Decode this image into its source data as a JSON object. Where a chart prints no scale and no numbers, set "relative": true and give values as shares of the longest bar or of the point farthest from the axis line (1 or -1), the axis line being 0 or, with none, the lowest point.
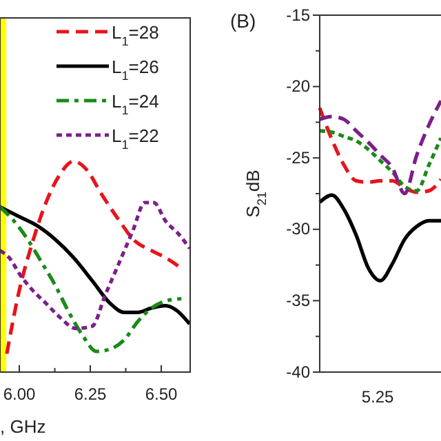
{
  "chart_data": [
    {
      "type": "line",
      "relative": true,
      "xlabel": ", GHz",
      "xlim": [
        5.932,
        6.602
      ],
      "xticks": [
        {
          "value": 6,
          "label": "6.00"
        },
        {
          "value": 6.125,
          "label": null
        },
        {
          "value": 6.25,
          "label": "6.25"
        },
        {
          "value": 6.375,
          "label": null
        },
        {
          "value": 6.5,
          "label": "6.50"
        }
      ],
      "legend": "top right",
      "grid": false,
      "bands": [
        {
          "axis": "x",
          "from": 5.932,
          "to": 5.954,
          "color": "#ffff00"
        }
      ],
      "series": [
        {
          "name": "L$_{1}$=28",
          "color": "#e8141c",
          "line_style": "dashed",
          "x": [
            5.956,
            5.997,
            6.045,
            6.094,
            6.142,
            6.191,
            6.239,
            6.288,
            6.353,
            6.401,
            6.466,
            6.515,
            6.563
          ],
          "values": [
            0.087,
            0.37,
            0.609,
            0.804,
            0.935,
            1,
            0.957,
            0.848,
            0.717,
            0.63,
            0.576,
            0.543,
            0.5
          ]
        },
        {
          "name": "L$_{1}$=26",
          "color": "#000000",
          "line_style": "solid",
          "x": [
            5.932,
            5.997,
            6.061,
            6.126,
            6.191,
            6.256,
            6.32,
            6.369,
            6.417,
            6.466,
            6.515,
            6.563,
            6.6
          ],
          "values": [
            0.783,
            0.739,
            0.696,
            0.63,
            0.543,
            0.435,
            0.326,
            0.283,
            0.283,
            0.304,
            0.315,
            0.283,
            0.228
          ]
        },
        {
          "name": "L$_{1}$=24",
          "color": "#1a8a1a",
          "line_style": "dashdot",
          "x": [
            5.932,
            5.981,
            6.029,
            6.078,
            6.126,
            6.175,
            6.223,
            6.272,
            6.32,
            6.369,
            6.417,
            6.466,
            6.515,
            6.571
          ],
          "values": [
            0.783,
            0.717,
            0.63,
            0.522,
            0.413,
            0.283,
            0.174,
            0.098,
            0.109,
            0.152,
            0.239,
            0.304,
            0.337,
            0.348
          ]
        },
        {
          "name": "L$_{1}$=22",
          "color": "#7b1f8a",
          "line_style": "dotted",
          "x": [
            5.932,
            5.964,
            6.005,
            6.045,
            6.094,
            6.142,
            6.199,
            6.256,
            6.304,
            6.353,
            6.401,
            6.442,
            6.474,
            6.515,
            6.563,
            6.6
          ],
          "values": [
            0.576,
            0.543,
            0.457,
            0.391,
            0.326,
            0.261,
            0.207,
            0.217,
            0.37,
            0.522,
            0.674,
            0.804,
            0.804,
            0.717,
            0.652,
            0.587
          ]
        }
      ]
    },
    {
      "type": "line",
      "title": "(B)",
      "ylabel": "S$_{21}$dB",
      "categories": [
        null,
        null,
        null,
        null,
        null,
        null,
        null,
        null,
        null,
        null,
        null
      ],
      "annotations": [
        "5.25"
      ],
      "ylim": [
        -40,
        -15
      ],
      "yticks": [
        -40,
        {
          "value": -37.5,
          "label": null
        },
        -35,
        {
          "value": -32.5,
          "label": null
        },
        -30,
        {
          "value": -27.5,
          "label": null
        },
        -25,
        {
          "value": -22.5,
          "label": null
        },
        -20,
        {
          "value": -17.5,
          "label": null
        },
        -15
      ],
      "grid": false,
      "series": [
        {
          "color": "#e8141c",
          "line_style": "dashed",
          "values": [
            -21.5,
            -23.7,
            -25.5,
            -26.6,
            -26.7,
            -26.6,
            -26.6,
            -27.1,
            -27.4,
            -27.3,
            -26.5
          ]
        },
        {
          "color": "#000000",
          "line_style": "solid",
          "values": [
            -28.1,
            -27.6,
            -28.6,
            -30.4,
            -32.7,
            -33.6,
            -32.4,
            -30.7,
            -29.8,
            -29.4,
            -29.4
          ]
        },
        {
          "color": "#1a8a1a",
          "line_style": "dotted",
          "values": [
            -23.1,
            -23.2,
            -23.5,
            -23.8,
            -24.4,
            -25.2,
            -26.0,
            -27.0,
            -27.3,
            -25.5,
            -23.6
          ]
        },
        {
          "color": "#7b1f8a",
          "line_style": "dashed",
          "values": [
            -22.3,
            -22.1,
            -22.3,
            -23.1,
            -23.9,
            -24.8,
            -25.7,
            -27.5,
            -24.8,
            -22.7,
            -21.0
          ]
        }
      ]
    }
  ]
}
